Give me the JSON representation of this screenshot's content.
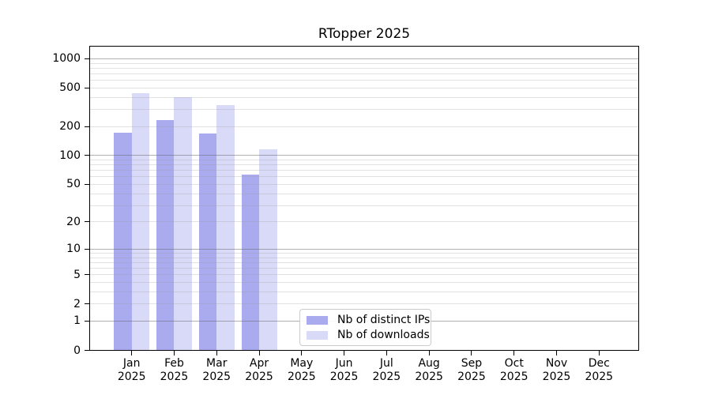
{
  "chart_data": {
    "type": "bar",
    "title": "RTopper 2025",
    "categories": [
      "Jan",
      "Feb",
      "Mar",
      "Apr",
      "May",
      "Jun",
      "Jul",
      "Aug",
      "Sep",
      "Oct",
      "Nov",
      "Dec"
    ],
    "year_label": "2025",
    "series": [
      {
        "name": "Nb of distinct IPs",
        "color": "#aaaaee",
        "values": [
          173,
          235,
          171,
          63,
          null,
          null,
          null,
          null,
          null,
          null,
          null,
          null
        ]
      },
      {
        "name": "Nb of downloads",
        "color": "#d9d9f8",
        "values": [
          440,
          400,
          335,
          117,
          null,
          null,
          null,
          null,
          null,
          null,
          null,
          null
        ]
      }
    ],
    "xlabel": "",
    "ylabel": "",
    "ylim": [
      0,
      1400
    ],
    "yaxis": {
      "scale": "log10(value+1)",
      "tick_labels": [
        "0",
        "1",
        "2",
        "5",
        "10",
        "20",
        "50",
        "100",
        "200",
        "500",
        "1000"
      ],
      "tick_values": [
        0,
        1,
        2,
        5,
        10,
        20,
        50,
        100,
        200,
        500,
        1000
      ],
      "major_gridlines": [
        1,
        10,
        100,
        1000
      ],
      "minor_gridlines": [
        2,
        3,
        4,
        5,
        6,
        7,
        8,
        9,
        20,
        30,
        40,
        50,
        60,
        70,
        80,
        90,
        200,
        300,
        400,
        500,
        600,
        700,
        800,
        900
      ]
    },
    "grid": "on",
    "legend_position": "lower center"
  },
  "colors": {
    "bar_distinct_ips": "#aaaaee",
    "bar_downloads": "#d9d9f8",
    "major_grid": "#b1b1b1",
    "minor_grid": "#e2e2e2",
    "axis": "#000000",
    "legend_border": "#cbcbcb"
  }
}
